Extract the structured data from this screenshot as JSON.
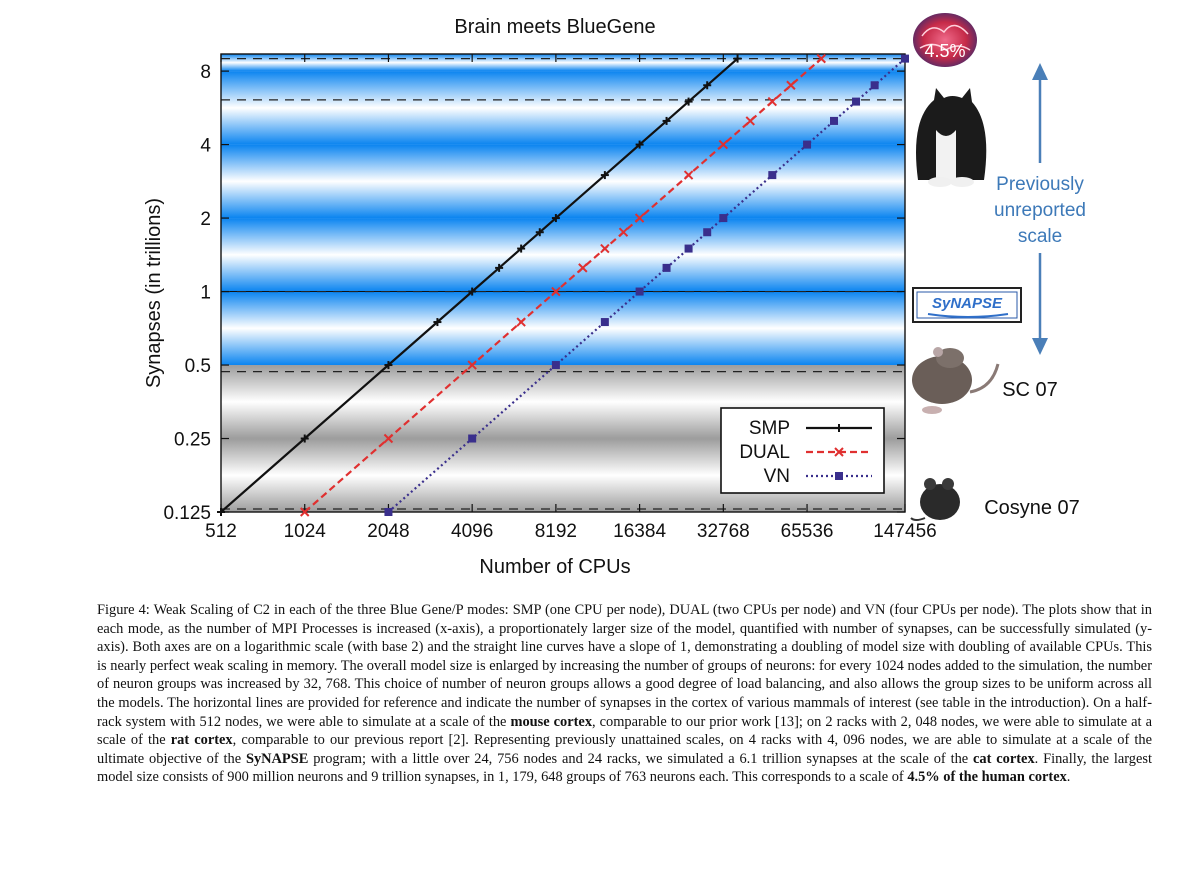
{
  "chart_data": {
    "type": "line",
    "title": "Brain meets BlueGene",
    "xlabel": "Number of CPUs",
    "ylabel": "Synapses (in trillions)",
    "x_scale": "log2",
    "y_scale": "log2",
    "x_ticks": [
      512,
      1024,
      2048,
      4096,
      8192,
      16384,
      32768,
      65536,
      147456
    ],
    "x_tick_labels": [
      "512",
      "1024",
      "2048",
      "4096",
      "8192",
      "16384",
      "32768",
      "65536",
      "147456"
    ],
    "y_ticks": [
      0.125,
      0.25,
      0.5,
      1,
      2,
      4,
      8
    ],
    "y_tick_labels": [
      "0.125",
      "0.25",
      "0.5",
      "1",
      "2",
      "4",
      "8"
    ],
    "xlim": [
      512,
      147456
    ],
    "ylim": [
      0.125,
      9.4
    ],
    "legend_position": "bottom-right",
    "series": [
      {
        "name": "SMP",
        "color": "#111111",
        "dash": "solid",
        "marker": "plus",
        "x": [
          512,
          1024,
          2048,
          3072,
          4096,
          5120,
          6144,
          7168,
          8192,
          12288,
          16384,
          20480,
          24576,
          28672,
          36864
        ],
        "y": [
          0.125,
          0.25,
          0.5,
          0.75,
          1,
          1.25,
          1.5,
          1.75,
          2,
          3,
          4,
          5,
          6,
          7,
          9
        ]
      },
      {
        "name": "DUAL",
        "color": "#e03030",
        "dash": "dashed",
        "marker": "x",
        "x": [
          1024,
          2048,
          4096,
          6144,
          8192,
          10240,
          12288,
          14336,
          16384,
          24576,
          32768,
          40960,
          49152,
          57344,
          73728
        ],
        "y": [
          0.125,
          0.25,
          0.5,
          0.75,
          1,
          1.25,
          1.5,
          1.75,
          2,
          3,
          4,
          5,
          6,
          7,
          9
        ]
      },
      {
        "name": "VN",
        "color": "#3a2f8c",
        "dash": "dotted",
        "marker": "square",
        "x": [
          2048,
          4096,
          8192,
          12288,
          16384,
          20480,
          24576,
          28672,
          32768,
          49152,
          65536,
          81920,
          98304,
          114688,
          147456
        ],
        "y": [
          0.125,
          0.25,
          0.5,
          0.75,
          1,
          1.25,
          1.5,
          1.75,
          2,
          3,
          4,
          5,
          6,
          7,
          9
        ]
      }
    ],
    "reference_lines": [
      {
        "y": 0.125,
        "label": "Cosyne 07"
      },
      {
        "y": 0.47,
        "label": "SC 07"
      },
      {
        "y": 1.0,
        "label": "SyNAPSE"
      },
      {
        "y": 6.1,
        "label": "cat"
      },
      {
        "y": 9.0,
        "label": "4.5%"
      }
    ],
    "annotation": "Previously unreported scale",
    "background_bands": {
      "blue_above": 0.5,
      "gray_below": 0.5
    }
  },
  "caption": {
    "figure_label": "Figure 4:",
    "line1": "Weak Scaling of C2 in each of the three Blue Gene/P modes: SMP (one CPU per node), DUAL (two CPUs per node) and VN",
    "line2": "(four CPUs per node). The plots show that in each mode, as the number of MPI Processes is increased (x-axis), a proportionately larger",
    "line3": "size of the model, quantified with number of synapses, can be successfully simulated (y-axis). Both axes are on a logarithmic scale (with",
    "line4": "base 2) and the straight line curves have a slope of 1, demonstrating a doubling of model size with doubling of available CPUs. This is",
    "line5": "nearly perfect weak scaling in memory. The overall model size is enlarged by increasing the number of groups of neurons: for every 1024",
    "line6": "nodes added to the simulation, the number of neuron groups was increased by 32, 768. This choice of number of neuron groups allows",
    "line7": "a good degree of load balancing, and also allows the group sizes to be uniform across all the models. The horizontal lines are provided",
    "line8": "for reference and indicate the number of synapses in the cortex of various mammals of interest (see table in the introduction). On a",
    "line9a": "half-rack system with 512 nodes, we were able to simulate at a scale of the ",
    "mouse_cortex": "mouse cortex",
    "line9b": ", comparable to our prior work [13]; on 2 racks",
    "line10a": "with 2, 048 nodes, we were able to simulate at a scale of the ",
    "rat_cortex": "rat cortex",
    "line10b": ", comparable to our previous report [2]. Representing previously",
    "line11a": "unattained scales, on 4 racks with 4, 096 nodes, we are able to simulate at a scale of the ultimate objective of the ",
    "synapse_program": "SyNAPSE",
    "line11b": " program;",
    "line12a": "with a little over 24, 756 nodes and 24 racks, we simulated a 6.1 trillion synapses at the scale of the ",
    "cat_cortex": "cat cortex",
    "line12b": ". Finally, the largest",
    "line13": "model size consists of 900 million neurons and 9 trillion synapses, in 1, 179, 648 groups of 763 neurons each. This corresponds to a scale",
    "line14a": "of ",
    "human_cortex": "4.5% of the human cortex",
    "line14b": "."
  }
}
